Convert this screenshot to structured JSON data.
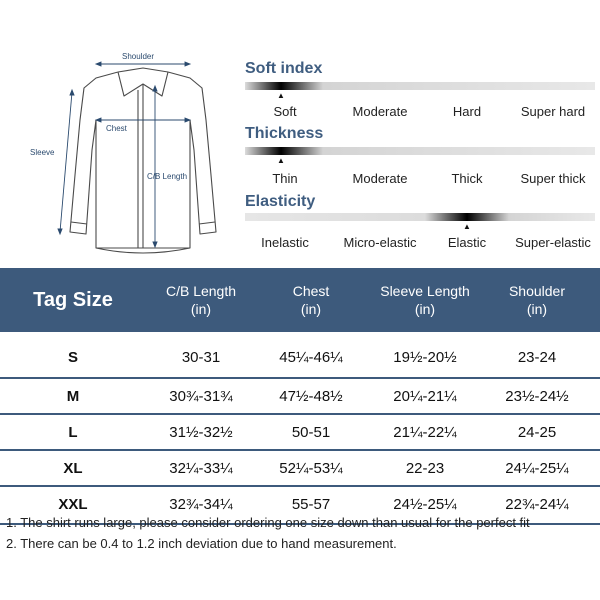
{
  "diagram": {
    "shoulder_label": "Shoulder",
    "chest_label": "Chest",
    "cb_length_label": "C/B Length",
    "sleeve_label": "Sleeve"
  },
  "indices": [
    {
      "title": "Soft index",
      "options": [
        "Soft",
        "Moderate",
        "Hard",
        "Super hard"
      ],
      "selected_index": 0
    },
    {
      "title": "Thickness",
      "options": [
        "Thin",
        "Moderate",
        "Thick",
        "Super thick"
      ],
      "selected_index": 0
    },
    {
      "title": "Elasticity",
      "options": [
        "Inelastic",
        "Micro-elastic",
        "Elastic",
        "Super-elastic"
      ],
      "selected_index": 2
    }
  ],
  "table": {
    "headers": {
      "tag_size": "Tag Size",
      "cb_length": "C/B Length",
      "chest": "Chest",
      "sleeve_length": "Sleeve Length",
      "shoulder": "Shoulder",
      "unit": "(in)"
    },
    "rows": [
      {
        "size": "S",
        "cb_length": "30-31",
        "chest": "45¼-46¼",
        "sleeve": "19½-20½",
        "shoulder": "23-24"
      },
      {
        "size": "M",
        "cb_length": "30¾-31¾",
        "chest": "47½-48½",
        "sleeve": "20¼-21¼",
        "shoulder": "23½-24½"
      },
      {
        "size": "L",
        "cb_length": "31½-32½",
        "chest": "50-51",
        "sleeve": "21¼-22¼",
        "shoulder": "24-25"
      },
      {
        "size": "XL",
        "cb_length": "32¼-33¼",
        "chest": "52¼-53¼",
        "sleeve": "22-23",
        "shoulder": "24¼-25¼"
      },
      {
        "size": "XXL",
        "cb_length": "32¾-34¼",
        "chest": "55-57",
        "sleeve": "24½-25¼",
        "shoulder": "22¾-24¼"
      }
    ]
  },
  "notes": [
    "1.  The shirt runs large, please consider ordering one size down than usual for the perfect fit",
    "2. There can be 0.4 to 1.2 inch deviation due to hand measurement."
  ],
  "colors": {
    "header_bg": "#3d5a7c",
    "title_blue": "#3f5d80",
    "dimension_blue": "#2b4a6e"
  }
}
